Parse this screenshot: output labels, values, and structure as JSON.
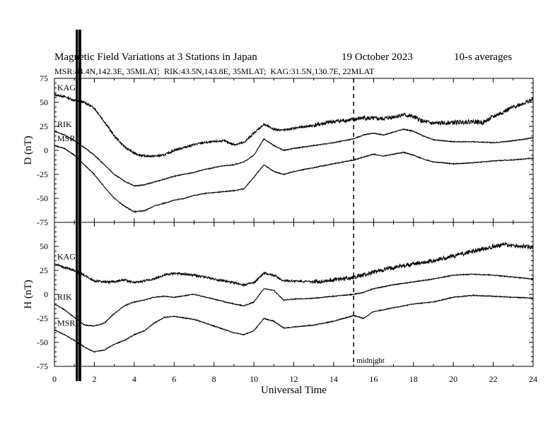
{
  "header": {
    "title": "Magnetic Field Variations at 3 Stations in Japan",
    "date": "19 October 2023",
    "averaging": "10-s averages",
    "stations_line": "MSR:44.4N,142.3E, 35MLAT;  RIK:43.5N,143.8E, 35MLAT;  KAG:31.5N,130.7E, 22MLAT"
  },
  "chart_data": [
    {
      "type": "line",
      "panel": "D",
      "ylabel": "D (nT)",
      "xlabel": "",
      "xlim": [
        0,
        24
      ],
      "ylim": [
        -75,
        75
      ],
      "yticks": [
        75,
        50,
        25,
        0,
        -25,
        -50,
        -75
      ],
      "grid": false,
      "series": [
        {
          "name": "KAG",
          "x": [
            0,
            0.5,
            1.0,
            1.5,
            2.0,
            2.5,
            3.0,
            3.5,
            4.0,
            4.5,
            5.0,
            5.5,
            6.0,
            6.5,
            7.0,
            7.5,
            8.0,
            8.5,
            9.0,
            9.5,
            10.0,
            10.5,
            11.0,
            11.5,
            12.0,
            13.0,
            14.0,
            15.0,
            15.5,
            16.0,
            16.5,
            17.0,
            17.5,
            18.0,
            18.5,
            19.0,
            20.0,
            21.0,
            21.5,
            22.0,
            23.0,
            24.0
          ],
          "values": [
            58,
            56,
            52,
            50,
            44,
            30,
            15,
            4,
            -3,
            -6,
            -6,
            -5,
            0,
            3,
            6,
            8,
            9,
            10,
            6,
            8,
            18,
            27,
            22,
            21,
            23,
            26,
            30,
            32,
            34,
            33,
            33,
            35,
            37,
            35,
            30,
            28,
            29,
            30,
            29,
            35,
            45,
            53
          ]
        },
        {
          "name": "RIK",
          "x": [
            0,
            0.5,
            1.0,
            1.5,
            2.0,
            2.5,
            3.0,
            3.5,
            4.0,
            4.5,
            5.0,
            5.5,
            6.0,
            6.5,
            7.0,
            7.5,
            8.0,
            8.5,
            9.0,
            9.5,
            10.0,
            10.5,
            11.0,
            11.5,
            12.0,
            13.0,
            14.0,
            15.0,
            15.5,
            16.0,
            16.5,
            17.0,
            17.5,
            18.0,
            18.5,
            19.0,
            20.0,
            21.0,
            22.0,
            23.0,
            24.0
          ],
          "values": [
            20,
            16,
            10,
            3,
            -5,
            -15,
            -25,
            -32,
            -37,
            -36,
            -33,
            -30,
            -27,
            -25,
            -23,
            -20,
            -18,
            -16,
            -15,
            -12,
            -5,
            12,
            5,
            0,
            2,
            5,
            8,
            12,
            16,
            18,
            16,
            19,
            22,
            20,
            15,
            11,
            9,
            9,
            8,
            10,
            13
          ]
        },
        {
          "name": "MSR",
          "x": [
            0,
            0.5,
            1.0,
            1.5,
            2.0,
            2.5,
            3.0,
            3.5,
            4.0,
            4.5,
            5.0,
            5.5,
            6.0,
            6.5,
            7.0,
            7.5,
            8.0,
            8.5,
            9.0,
            9.5,
            10.0,
            10.5,
            11.0,
            11.5,
            12.0,
            13.0,
            14.0,
            15.0,
            15.5,
            16.0,
            16.5,
            17.0,
            17.5,
            18.0,
            18.5,
            19.0,
            20.0,
            21.0,
            22.0,
            23.0,
            24.0
          ],
          "values": [
            5,
            2,
            -5,
            -15,
            -25,
            -38,
            -50,
            -58,
            -64,
            -63,
            -58,
            -55,
            -52,
            -50,
            -47,
            -45,
            -44,
            -43,
            -42,
            -40,
            -28,
            -15,
            -22,
            -25,
            -22,
            -18,
            -14,
            -10,
            -7,
            -4,
            -6,
            -4,
            -2,
            -5,
            -9,
            -12,
            -14,
            -13,
            -11,
            -10,
            -8
          ]
        }
      ],
      "labels": [
        "KAG",
        "RIK",
        "MSR"
      ],
      "annotations": []
    },
    {
      "type": "line",
      "panel": "H",
      "ylabel": "H (nT)",
      "xlabel": "Universal Time",
      "xlim": [
        0,
        24
      ],
      "ylim": [
        -75,
        75
      ],
      "yticks": [
        50,
        25,
        0,
        -25,
        -50,
        -75
      ],
      "xticks": [
        0,
        2,
        4,
        6,
        8,
        10,
        12,
        14,
        16,
        18,
        20,
        22,
        24
      ],
      "grid": false,
      "series": [
        {
          "name": "KAG",
          "x": [
            0,
            0.5,
            1.0,
            1.5,
            2.0,
            2.5,
            3.0,
            3.5,
            4.0,
            4.5,
            5.0,
            5.5,
            6.0,
            7.0,
            8.0,
            9.0,
            9.5,
            10.0,
            10.5,
            11.0,
            11.5,
            12.0,
            13.0,
            14.0,
            15.0,
            15.5,
            16.0,
            17.0,
            18.0,
            19.0,
            20.0,
            21.0,
            22.0,
            22.5,
            23.0,
            24.0
          ],
          "values": [
            32,
            28,
            25,
            20,
            14,
            13,
            13,
            15,
            12,
            14,
            16,
            20,
            22,
            20,
            16,
            12,
            10,
            12,
            22,
            20,
            14,
            14,
            13,
            15,
            18,
            20,
            23,
            28,
            32,
            35,
            40,
            45,
            50,
            52,
            51,
            49
          ]
        },
        {
          "name": "RIK",
          "x": [
            0,
            0.5,
            1.0,
            1.5,
            2.0,
            2.5,
            3.0,
            3.5,
            4.0,
            4.5,
            5.0,
            5.5,
            6.0,
            7.0,
            8.0,
            9.0,
            9.5,
            10.0,
            10.5,
            11.0,
            11.5,
            12.0,
            13.0,
            14.0,
            15.0,
            15.5,
            16.0,
            17.0,
            18.0,
            19.0,
            20.0,
            21.0,
            22.0,
            23.0,
            24.0
          ],
          "values": [
            -10,
            -16,
            -24,
            -32,
            -33,
            -30,
            -20,
            -12,
            -8,
            -6,
            -3,
            -2,
            -3,
            0,
            -5,
            -10,
            -12,
            -8,
            6,
            4,
            -6,
            -5,
            -4,
            -2,
            0,
            2,
            6,
            10,
            13,
            16,
            20,
            21,
            20,
            18,
            16
          ]
        },
        {
          "name": "MSR",
          "x": [
            0,
            0.5,
            1.0,
            1.5,
            2.0,
            2.5,
            3.0,
            3.5,
            4.0,
            4.5,
            5.0,
            5.5,
            6.0,
            7.0,
            8.0,
            9.0,
            9.5,
            10.0,
            10.5,
            11.0,
            11.5,
            12.0,
            13.0,
            14.0,
            15.0,
            15.5,
            16.0,
            17.0,
            18.0,
            19.0,
            20.0,
            21.0,
            22.0,
            23.0,
            24.0
          ],
          "values": [
            -37,
            -42,
            -48,
            -55,
            -60,
            -58,
            -52,
            -48,
            -42,
            -38,
            -30,
            -24,
            -23,
            -26,
            -33,
            -40,
            -42,
            -38,
            -25,
            -28,
            -35,
            -34,
            -32,
            -28,
            -22,
            -25,
            -18,
            -14,
            -10,
            -8,
            -3,
            -1,
            -2,
            -3,
            -4
          ]
        }
      ],
      "labels": [
        "KAG",
        "RIK",
        "MSR"
      ],
      "annotations": [
        "midnight"
      ]
    }
  ],
  "marker": {
    "hour": 15,
    "label": "midnight"
  }
}
